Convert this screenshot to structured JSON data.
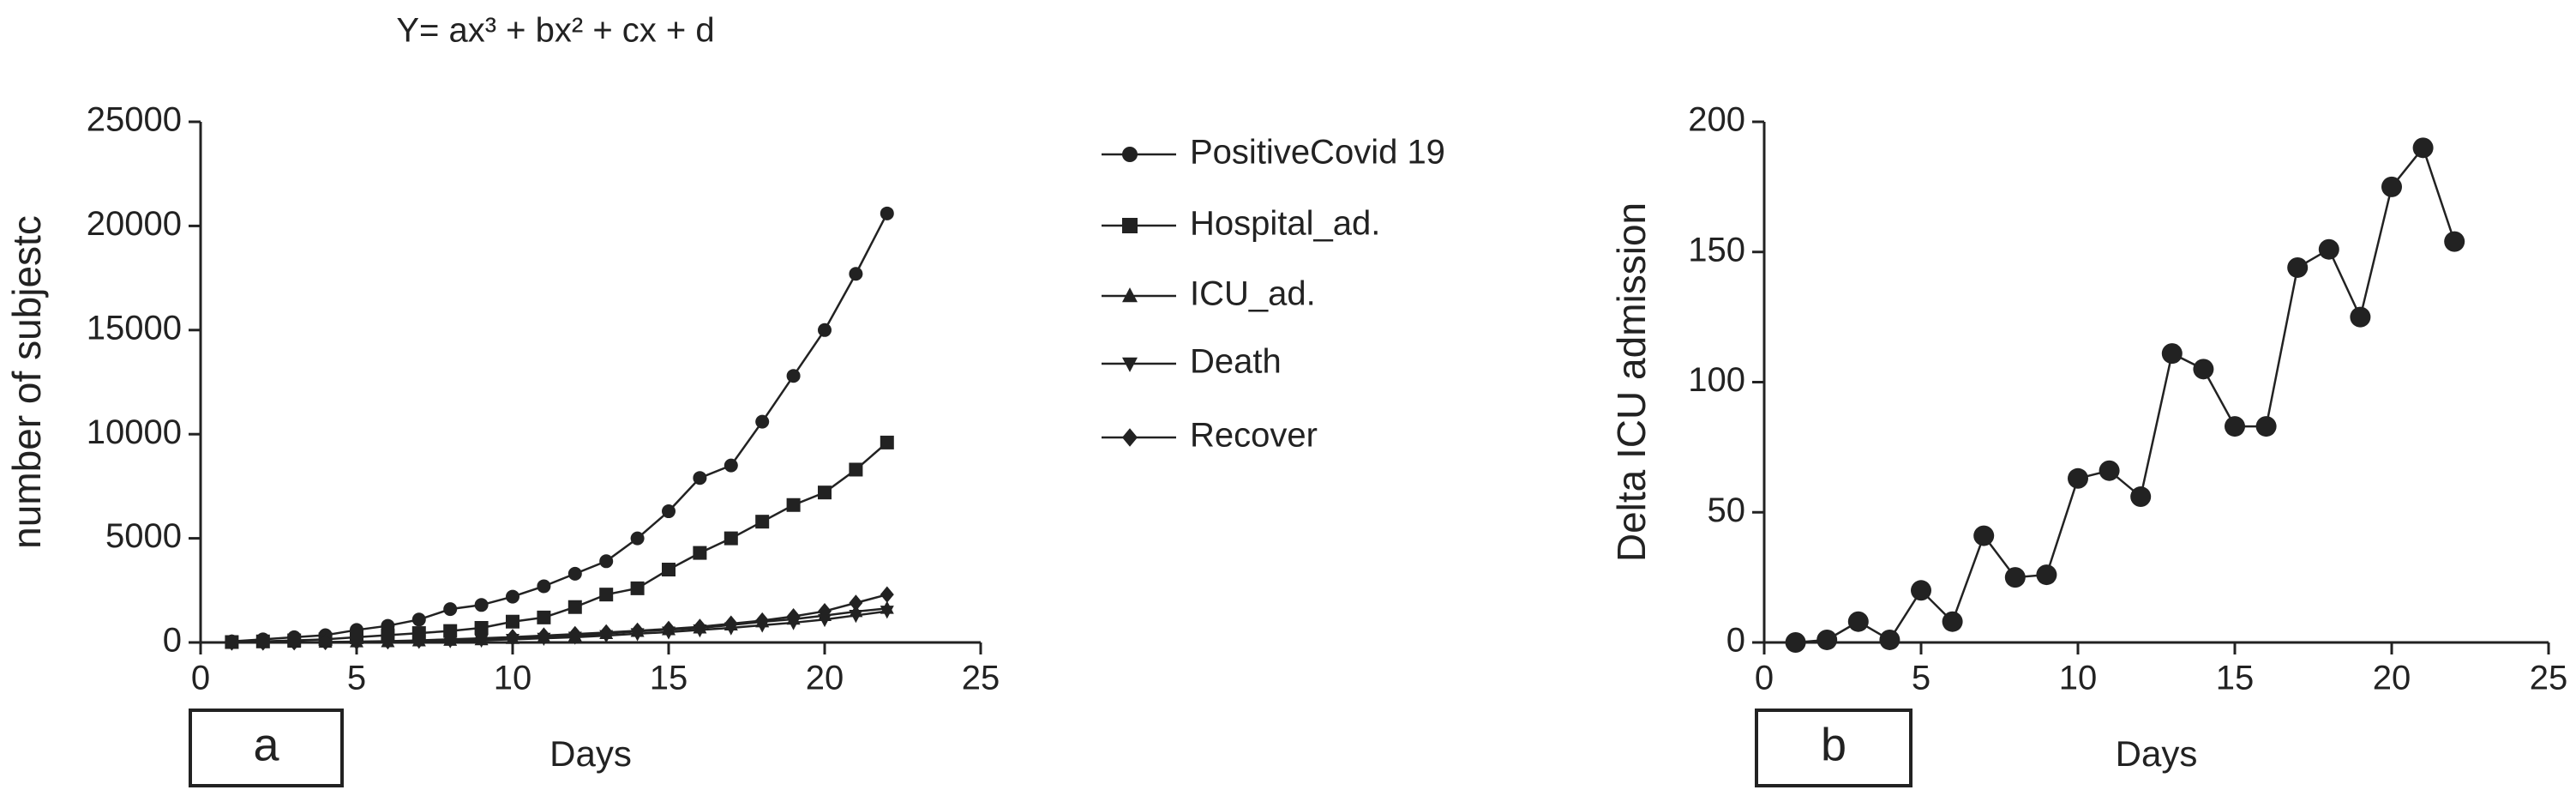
{
  "chart_data": [
    {
      "type": "line",
      "title": "Y= ax³ + bx² + cx + d",
      "panel_label": "a",
      "x_label": "Days",
      "y_label": "number of subjestc",
      "x": [
        1,
        2,
        3,
        4,
        5,
        6,
        7,
        8,
        9,
        10,
        11,
        12,
        13,
        14,
        15,
        16,
        17,
        18,
        19,
        20,
        21,
        22
      ],
      "series": [
        {
          "name": "PositiveCovid 19",
          "color": "#222222",
          "marker": "circle",
          "values": [
            50,
            150,
            250,
            350,
            600,
            800,
            1100,
            1600,
            1800,
            2200,
            2700,
            3300,
            3900,
            5000,
            6300,
            7900,
            8500,
            10600,
            12800,
            15000,
            17700,
            20600
          ]
        },
        {
          "name": "Hospital_ad.",
          "color": "#222222",
          "marker": "square",
          "values": [
            20,
            50,
            100,
            150,
            250,
            350,
            450,
            550,
            700,
            1000,
            1200,
            1700,
            2300,
            2600,
            3500,
            4300,
            5000,
            5800,
            6600,
            7200,
            8300,
            9600
          ]
        },
        {
          "name": "ICU_ad.",
          "color": "#222222",
          "marker": "triangle-up",
          "values": [
            0,
            1,
            9,
            10,
            30,
            38,
            79,
            104,
            130,
            193,
            259,
            315,
            426,
            531,
            614,
            697,
            841,
            992,
            1117,
            1292,
            1482,
            1636
          ]
        },
        {
          "name": "Death",
          "color": "#222222",
          "marker": "triangle-down",
          "values": [
            0,
            0,
            5,
            10,
            20,
            30,
            50,
            80,
            110,
            150,
            200,
            250,
            330,
            420,
            500,
            600,
            700,
            830,
            950,
            1100,
            1300,
            1500
          ]
        },
        {
          "name": "Recover",
          "color": "#222222",
          "marker": "diamond",
          "values": [
            0,
            0,
            10,
            20,
            40,
            60,
            100,
            150,
            200,
            260,
            330,
            400,
            480,
            560,
            650,
            750,
            900,
            1050,
            1250,
            1500,
            1900,
            2300
          ]
        }
      ],
      "xlim": [
        0,
        25
      ],
      "xticks": [
        0,
        5,
        10,
        15,
        20,
        25
      ],
      "ylim": [
        0,
        25000
      ],
      "yticks": [
        0,
        5000,
        10000,
        15000,
        20000,
        25000
      ],
      "grid": false,
      "legend": "right"
    },
    {
      "type": "line",
      "panel_label": "b",
      "x_label": "Days",
      "y_label": "Delta ICU admission",
      "x": [
        1,
        2,
        3,
        4,
        5,
        6,
        7,
        8,
        9,
        10,
        11,
        12,
        13,
        14,
        15,
        16,
        17,
        18,
        19,
        20,
        21,
        22
      ],
      "series": [
        {
          "color": "#222222",
          "marker": "circle",
          "values": [
            0,
            1,
            8,
            1,
            20,
            8,
            41,
            25,
            26,
            63,
            66,
            56,
            111,
            105,
            83,
            83,
            144,
            151,
            125,
            175,
            190,
            154
          ]
        }
      ],
      "xlim": [
        0,
        25
      ],
      "xticks": [
        0,
        5,
        10,
        15,
        20,
        25
      ],
      "ylim": [
        0,
        200
      ],
      "yticks": [
        0,
        50,
        100,
        150,
        200
      ],
      "grid": false
    }
  ]
}
